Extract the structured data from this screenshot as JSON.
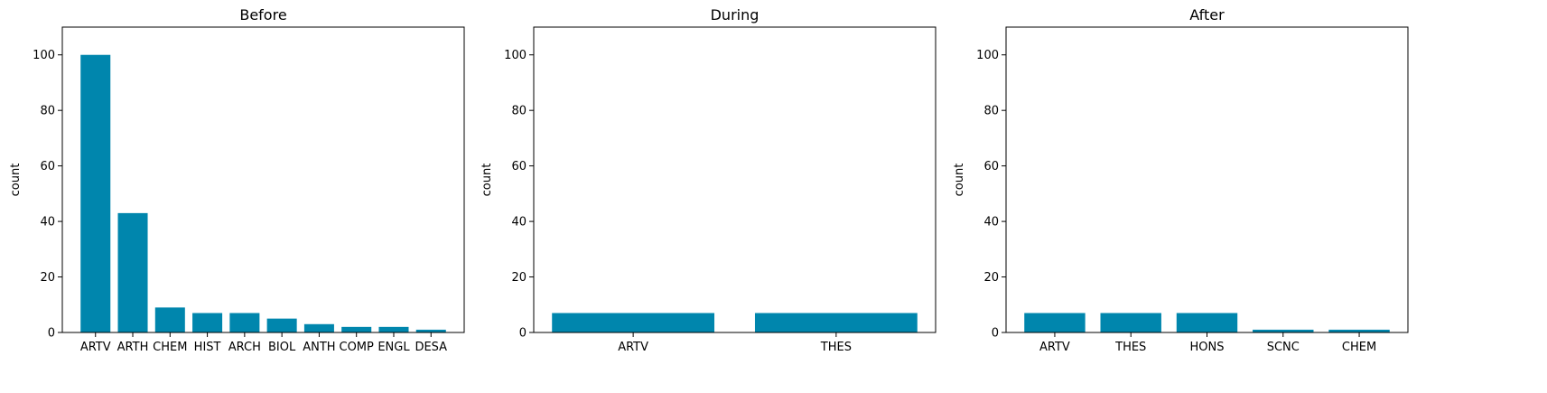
{
  "chart_data": [
    {
      "type": "bar",
      "title": "Before",
      "xlabel": "",
      "ylabel": "count",
      "ylim": [
        0,
        110
      ],
      "yticks": [
        0,
        20,
        40,
        60,
        80,
        100
      ],
      "categories": [
        "ARTV",
        "ARTH",
        "CHEM",
        "HIST",
        "ARCH",
        "BIOL",
        "ANTH",
        "COMP",
        "ENGL",
        "DESA"
      ],
      "values": [
        100,
        43,
        9,
        7,
        7,
        5,
        3,
        2,
        2,
        1
      ],
      "color": "#0086ad",
      "grid": false
    },
    {
      "type": "bar",
      "title": "During",
      "xlabel": "",
      "ylabel": "count",
      "ylim": [
        0,
        110
      ],
      "yticks": [
        0,
        20,
        40,
        60,
        80,
        100
      ],
      "categories": [
        "ARTV",
        "THES"
      ],
      "values": [
        7,
        7
      ],
      "color": "#0086ad",
      "grid": false
    },
    {
      "type": "bar",
      "title": "After",
      "xlabel": "",
      "ylabel": "count",
      "ylim": [
        0,
        110
      ],
      "yticks": [
        0,
        20,
        40,
        60,
        80,
        100
      ],
      "categories": [
        "ARTV",
        "THES",
        "HONS",
        "SCNC",
        "CHEM"
      ],
      "values": [
        7,
        7,
        7,
        1,
        1
      ],
      "color": "#0086ad",
      "grid": false
    }
  ]
}
